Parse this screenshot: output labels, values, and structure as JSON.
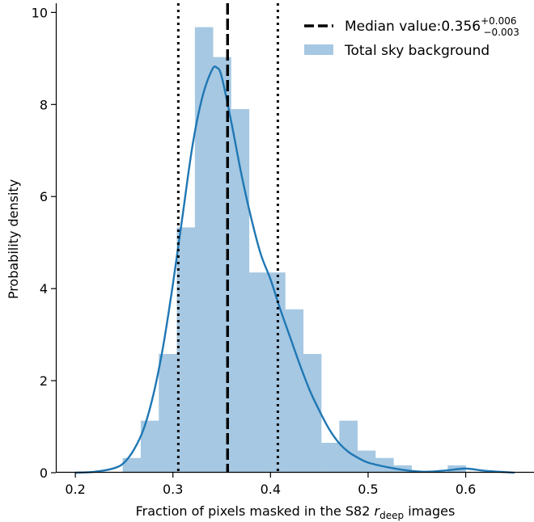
{
  "chart_data": {
    "type": "bar",
    "xlabel": "Fraction of pixels masked in the S82",
    "xlabel_symbol": "r",
    "xlabel_subscript": "deep",
    "xlabel_suffix": "images",
    "ylabel": "Probability density",
    "xlim": [
      0.18,
      0.67
    ],
    "ylim": [
      0,
      10.2
    ],
    "xticks": [
      0.2,
      0.3,
      0.4,
      0.5,
      0.6
    ],
    "xtick_labels": [
      "0.2",
      "0.3",
      "0.4",
      "0.5",
      "0.6"
    ],
    "yticks": [
      0,
      2,
      4,
      6,
      8,
      10
    ],
    "ytick_labels": [
      "0",
      "2",
      "4",
      "6",
      "8",
      "10"
    ],
    "bin_edges": [
      0.2485,
      0.267,
      0.2855,
      0.304,
      0.3225,
      0.341,
      0.3595,
      0.378,
      0.3965,
      0.415,
      0.4335,
      0.452,
      0.4705,
      0.489,
      0.5075,
      0.526,
      0.5445,
      0.563,
      0.5815,
      0.6
    ],
    "bar_values": [
      0.32,
      1.13,
      2.58,
      5.33,
      9.68,
      9.03,
      7.9,
      4.35,
      4.35,
      3.55,
      2.58,
      0.65,
      1.13,
      0.48,
      0.32,
      0.16,
      0.0,
      0.0,
      0.16
    ],
    "kde_x": [
      0.2,
      0.22,
      0.24,
      0.25,
      0.26,
      0.27,
      0.28,
      0.29,
      0.3,
      0.31,
      0.32,
      0.33,
      0.34,
      0.345,
      0.35,
      0.36,
      0.37,
      0.38,
      0.39,
      0.4,
      0.41,
      0.42,
      0.43,
      0.44,
      0.45,
      0.46,
      0.47,
      0.48,
      0.49,
      0.5,
      0.52,
      0.54,
      0.56,
      0.58,
      0.6,
      0.62,
      0.65
    ],
    "kde_y": [
      0.0,
      0.02,
      0.1,
      0.22,
      0.5,
      0.95,
      1.7,
      2.75,
      4.1,
      5.6,
      7.1,
      8.15,
      8.75,
      8.8,
      8.6,
      7.6,
      6.5,
      5.55,
      4.75,
      4.2,
      3.55,
      2.95,
      2.35,
      1.8,
      1.35,
      0.95,
      0.65,
      0.45,
      0.32,
      0.22,
      0.12,
      0.05,
      0.02,
      0.05,
      0.09,
      0.04,
      0.0
    ],
    "median": 0.356,
    "median_lower": 0.3055,
    "median_upper": 0.4075,
    "legend_position": "top-right",
    "legend": [
      {
        "label_prefix": "Median value:",
        "value": "0.356",
        "sup": "+0.006",
        "sub": "−0.003",
        "style": "dashed"
      },
      {
        "label": "Total sky background",
        "style": "patch"
      }
    ],
    "colors": {
      "bars": "#a6c8e2",
      "kde": "#1f77b4",
      "lines": "#000000"
    },
    "grid": false
  }
}
